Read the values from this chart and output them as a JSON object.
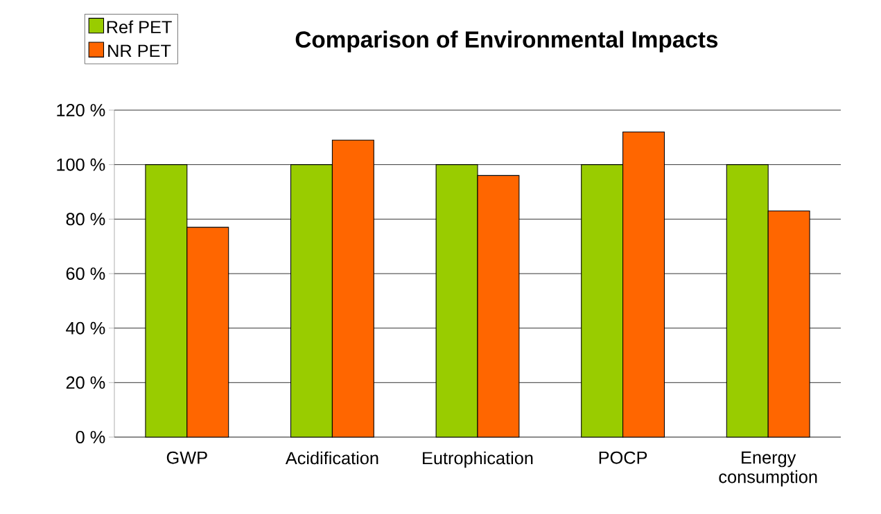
{
  "chart_data": {
    "type": "bar",
    "title": "Comparison of Environmental Impacts",
    "categories": [
      "GWP",
      "Acidification",
      "Eutrophication",
      "POCP",
      "Energy consumption"
    ],
    "series": [
      {
        "name": "Ref PET",
        "color": "#99cc00",
        "values": [
          100,
          100,
          100,
          100,
          100
        ]
      },
      {
        "name": "NR PET",
        "color": "#ff6600",
        "values": [
          77,
          109,
          96,
          112,
          83
        ]
      }
    ],
    "ylim": [
      0,
      120
    ],
    "yticks": [
      {
        "value": 0,
        "label": "0 %"
      },
      {
        "value": 20,
        "label": "20 %"
      },
      {
        "value": 40,
        "label": "40 %"
      },
      {
        "value": 60,
        "label": "60 %"
      },
      {
        "value": 80,
        "label": "80 %"
      },
      {
        "value": 100,
        "label": "100 %"
      },
      {
        "value": 120,
        "label": "120 %"
      }
    ],
    "grid": "y",
    "legend": "top left"
  }
}
